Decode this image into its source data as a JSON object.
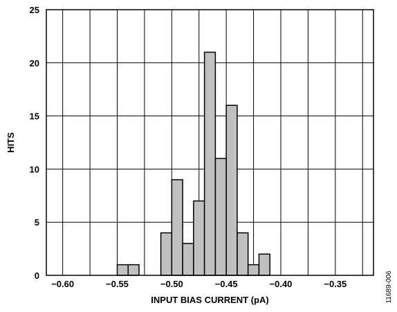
{
  "chart_data": {
    "type": "bar",
    "title": "",
    "xlabel": "INPUT BIAS CURRENT (pA)",
    "ylabel": "HITS",
    "xlim": [
      -0.615,
      -0.315
    ],
    "ylim": [
      0,
      25
    ],
    "grid": true,
    "bin_width": 0.01,
    "x_ticks": [
      -0.6,
      -0.55,
      -0.5,
      -0.45,
      -0.4,
      -0.35
    ],
    "x_tick_labels": [
      "−0.60",
      "−0.55",
      "−0.50",
      "−0.45",
      "−0.40",
      "−0.35"
    ],
    "y_ticks": [
      0,
      5,
      10,
      15,
      20,
      25
    ],
    "y_tick_labels": [
      "0",
      "5",
      "10",
      "15",
      "20",
      "25"
    ],
    "bars": [
      {
        "x": -0.545,
        "value": 1
      },
      {
        "x": -0.535,
        "value": 1
      },
      {
        "x": -0.505,
        "value": 4
      },
      {
        "x": -0.495,
        "value": 9
      },
      {
        "x": -0.485,
        "value": 3
      },
      {
        "x": -0.475,
        "value": 7
      },
      {
        "x": -0.465,
        "value": 21
      },
      {
        "x": -0.455,
        "value": 11
      },
      {
        "x": -0.445,
        "value": 16
      },
      {
        "x": -0.435,
        "value": 4
      },
      {
        "x": -0.425,
        "value": 1
      },
      {
        "x": -0.415,
        "value": 2
      }
    ],
    "bar_color": "#c0c0c0",
    "edge_color": "#000000"
  },
  "figure_code": "11689-006"
}
